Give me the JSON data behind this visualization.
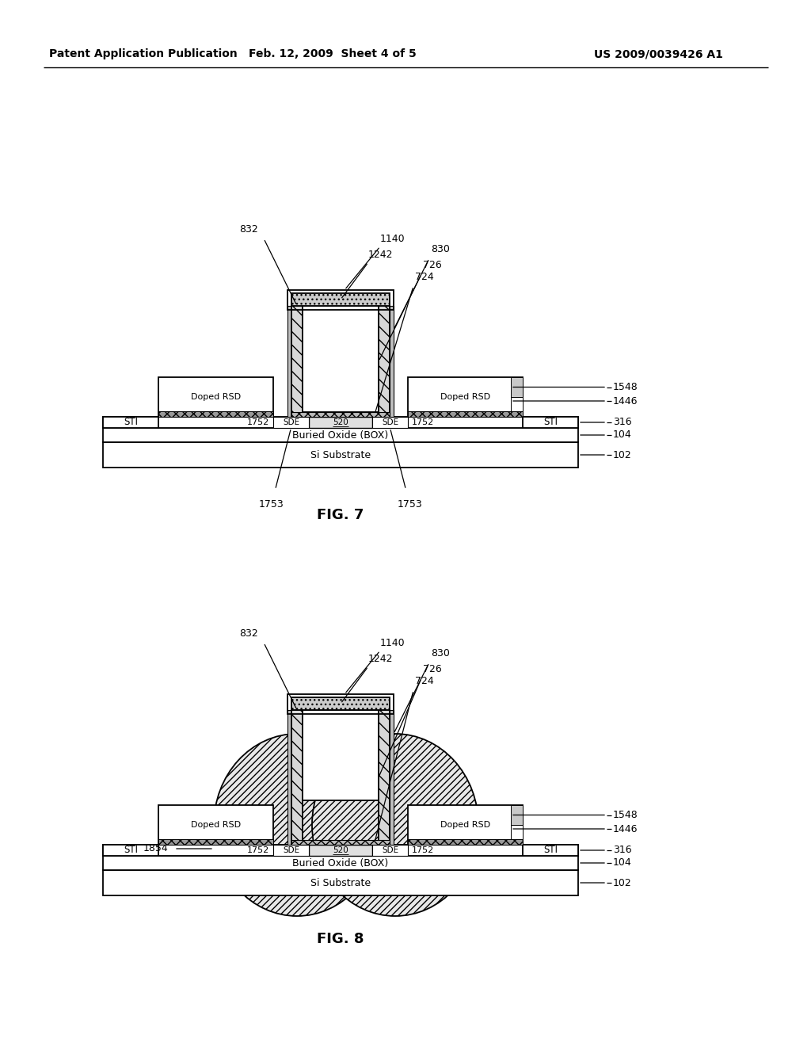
{
  "title_left": "Patent Application Publication",
  "title_mid": "Feb. 12, 2009  Sheet 4 of 5",
  "title_right": "US 2009/0039426 A1",
  "fig7_label": "FIG. 7",
  "fig8_label": "FIG. 8",
  "bg_color": "#ffffff"
}
